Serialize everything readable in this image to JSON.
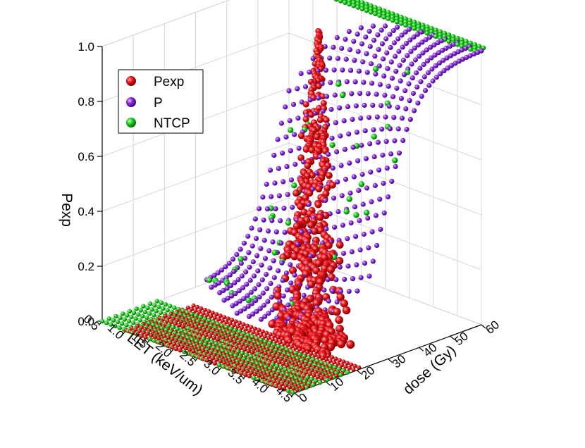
{
  "chart_data": {
    "type": "scatter",
    "projection": "3d",
    "xlabel": "LET (keV/um)",
    "ylabel": "dose (Gy)",
    "zlabel": "Pexp",
    "x_range": [
      0.5,
      4.5
    ],
    "y_range": [
      0,
      60
    ],
    "z_range": [
      0.0,
      1.0
    ],
    "x_ticks": [
      "0.5",
      "1.0",
      "1.5",
      "2.0",
      "2.5",
      "3.0",
      "3.5",
      "4.0",
      "4.5"
    ],
    "y_ticks": [
      "0",
      "10",
      "20",
      "30",
      "40",
      "50",
      "60"
    ],
    "z_ticks": [
      "0.0",
      "0.2",
      "0.4",
      "0.6",
      "0.8",
      "1.0"
    ],
    "grid": true,
    "legend": {
      "placement": "top-left",
      "entries": [
        {
          "name": "Pexp",
          "color": "#e8141b"
        },
        {
          "name": "P",
          "color": "#8a2be2"
        },
        {
          "name": "NTCP",
          "color": "#1fd11f"
        }
      ]
    },
    "series": [
      {
        "name": "P",
        "color": "#8a2be2",
        "description_points": [
          {
            "LET": 0.5,
            "dose": 20,
            "value": 0.0
          },
          {
            "LET": 0.5,
            "dose": 40,
            "value": 0.05
          },
          {
            "LET": 0.5,
            "dose": 60,
            "value": 0.35
          },
          {
            "LET": 2.5,
            "dose": 20,
            "value": 0.08
          },
          {
            "LET": 2.5,
            "dose": 40,
            "value": 0.72
          },
          {
            "LET": 2.5,
            "dose": 60,
            "value": 0.99
          },
          {
            "LET": 4.5,
            "dose": 20,
            "value": 0.55
          },
          {
            "LET": 4.5,
            "dose": 40,
            "value": 0.98
          },
          {
            "LET": 4.5,
            "dose": 60,
            "value": 1.0
          }
        ]
      },
      {
        "name": "NTCP",
        "color": "#1fd11f",
        "description_points": [
          {
            "LET": 0.5,
            "dose": 0,
            "value": 0.0
          },
          {
            "LET": 4.5,
            "dose": 30,
            "value": 0.0
          },
          {
            "LET": 0.5,
            "dose": 60,
            "value": 1.0
          },
          {
            "LET": 4.5,
            "dose": 60,
            "value": 1.0
          }
        ]
      },
      {
        "name": "Pexp",
        "color": "#e8141b",
        "description_points": [
          {
            "LET": 2.3,
            "dose": 45,
            "value": 0.95
          },
          {
            "LET": 2.5,
            "dose": 40,
            "value": 0.7
          },
          {
            "LET": 2.7,
            "dose": 35,
            "value": 0.45
          },
          {
            "LET": 3.0,
            "dose": 30,
            "value": 0.2
          },
          {
            "LET": 3.5,
            "dose": 25,
            "value": 0.05
          },
          {
            "LET": 1.0,
            "dose": 10,
            "value": 0.0
          },
          {
            "LET": 4.5,
            "dose": 10,
            "value": 0.0
          }
        ]
      }
    ]
  }
}
